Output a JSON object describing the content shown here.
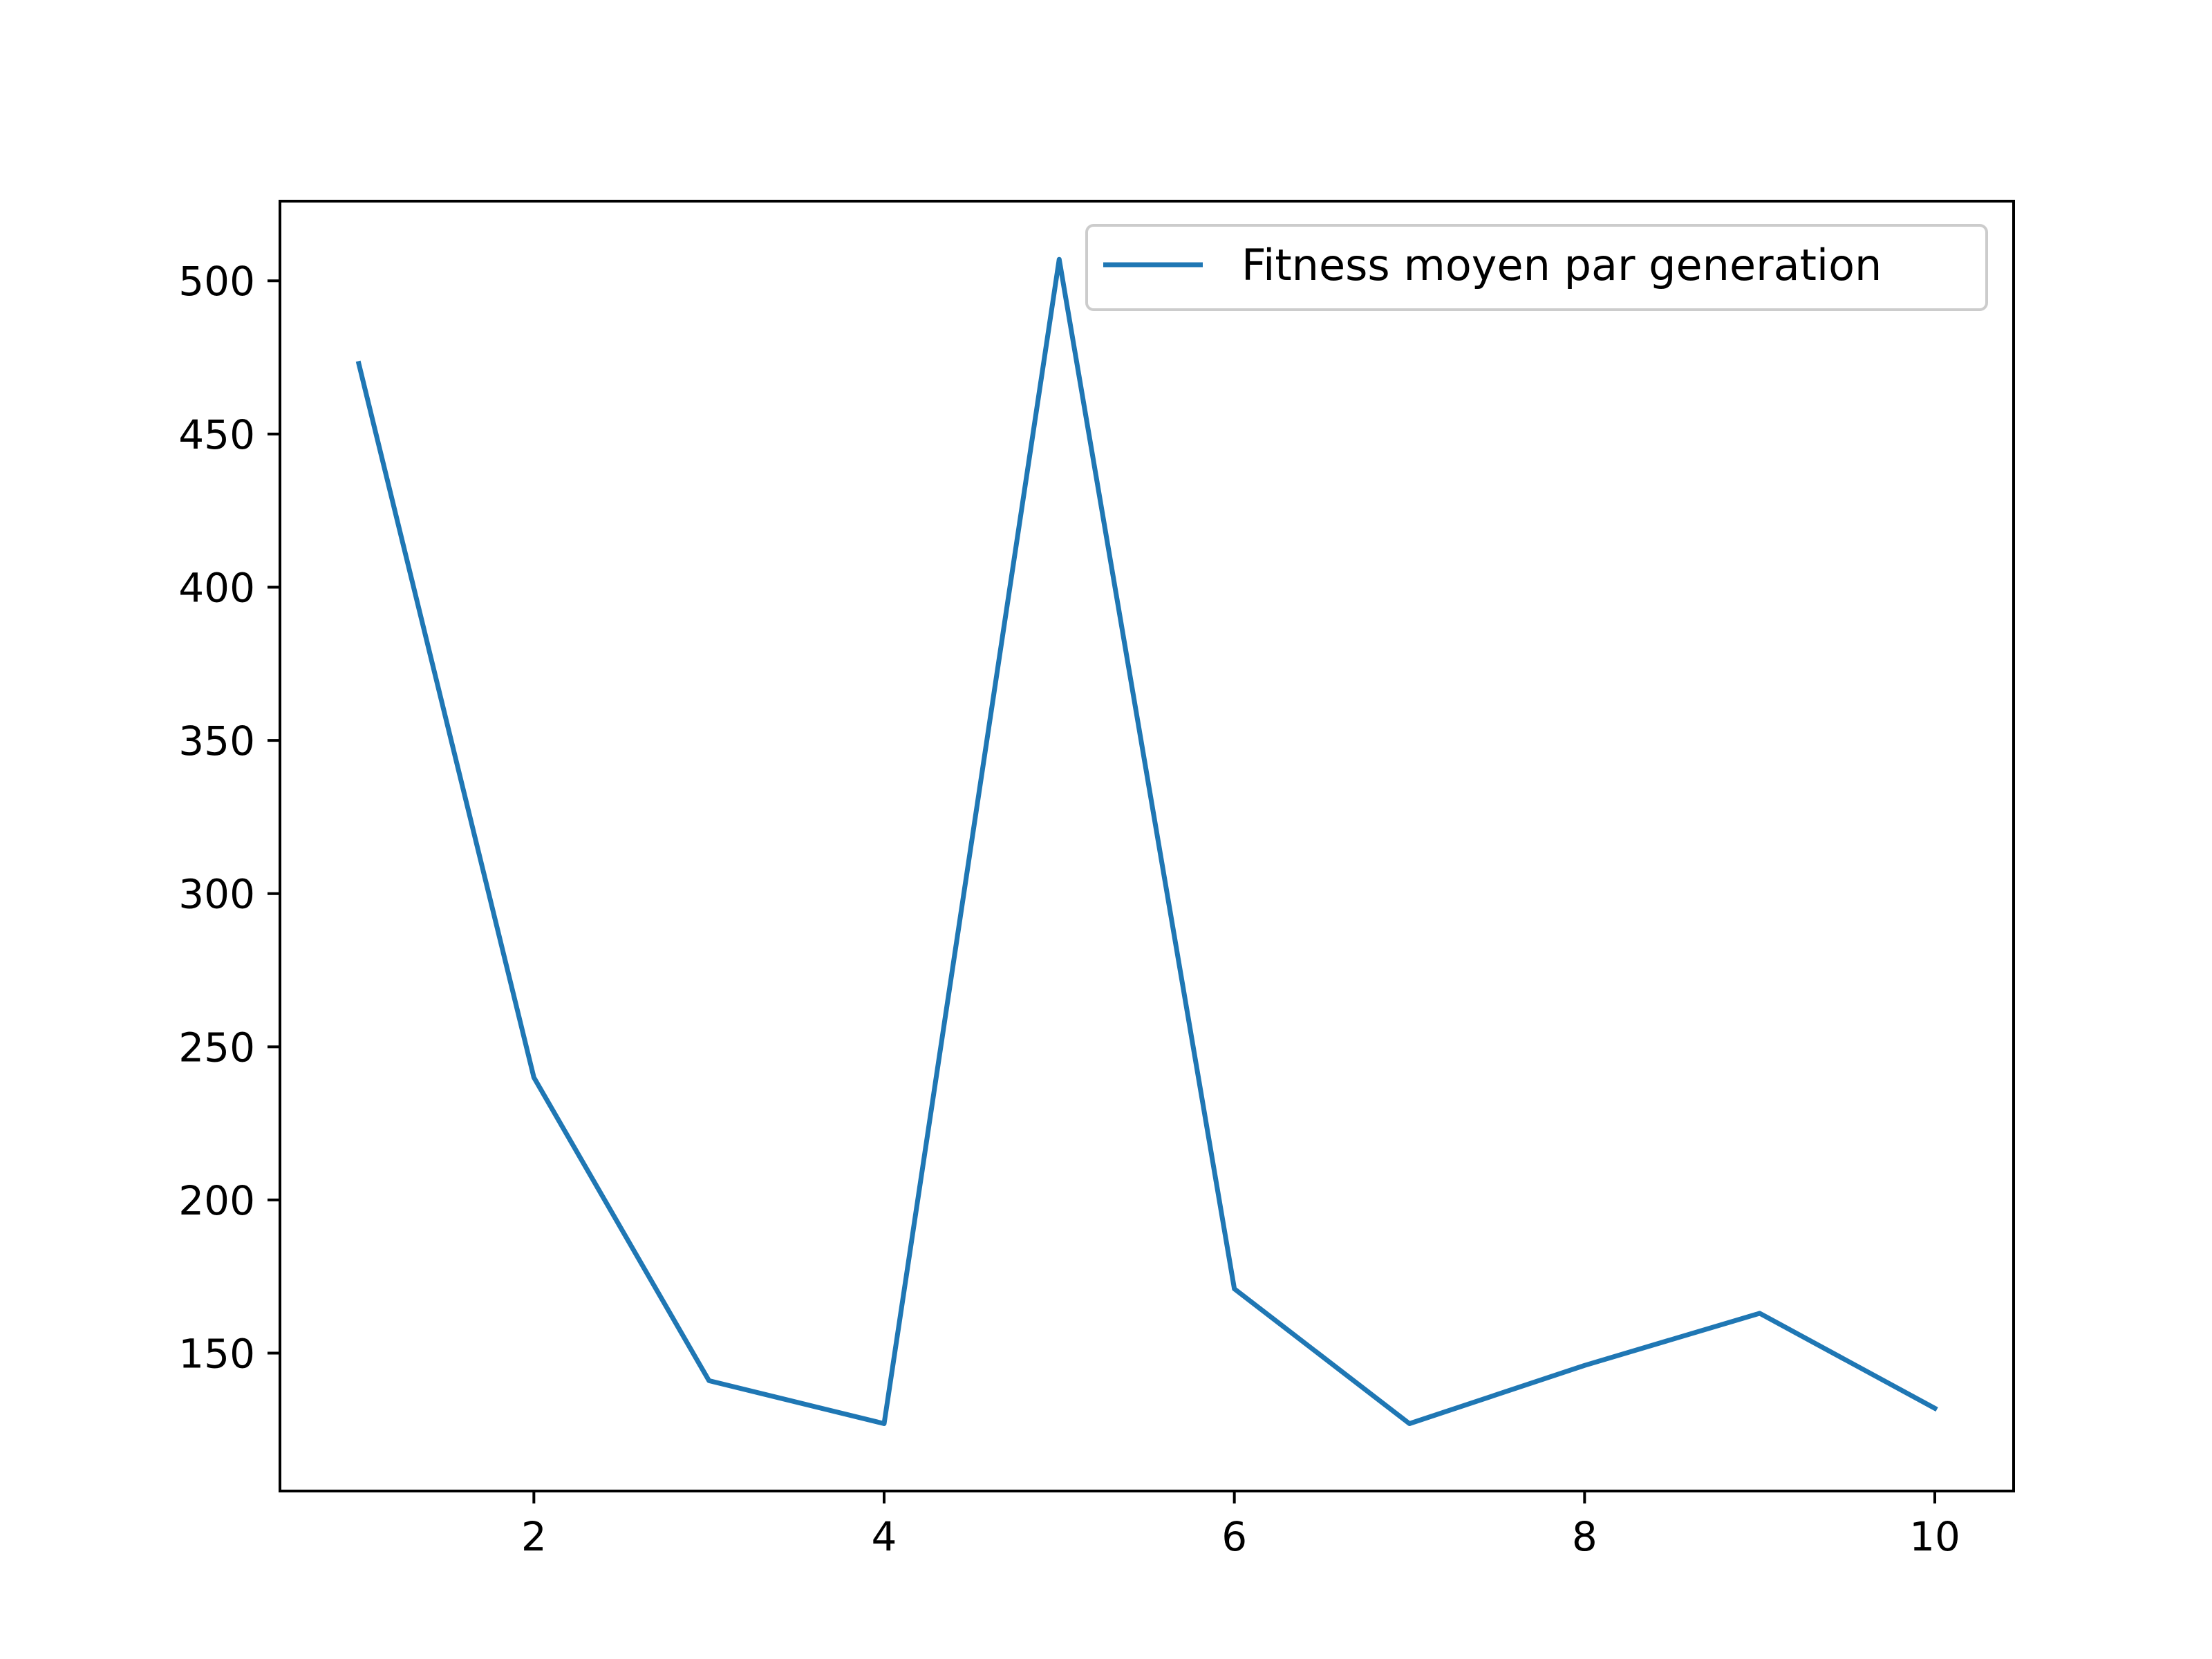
{
  "chart_data": {
    "type": "line",
    "title": "",
    "xlabel": "",
    "ylabel": "",
    "x": [
      1,
      2,
      3,
      4,
      5,
      6,
      7,
      8,
      9,
      10
    ],
    "series": [
      {
        "name": "Fitness moyen par generation",
        "color": "#1f77b4",
        "values": [
          473,
          240,
          141,
          127,
          507,
          171,
          127,
          146,
          163,
          132
        ]
      }
    ],
    "xlim": [
      0.55,
      10.45
    ],
    "ylim": [
      105,
      526
    ],
    "xticks": [
      2,
      4,
      6,
      8,
      10
    ],
    "yticks": [
      150,
      200,
      250,
      300,
      350,
      400,
      450,
      500
    ],
    "grid": false,
    "legend_position": "top-right"
  }
}
